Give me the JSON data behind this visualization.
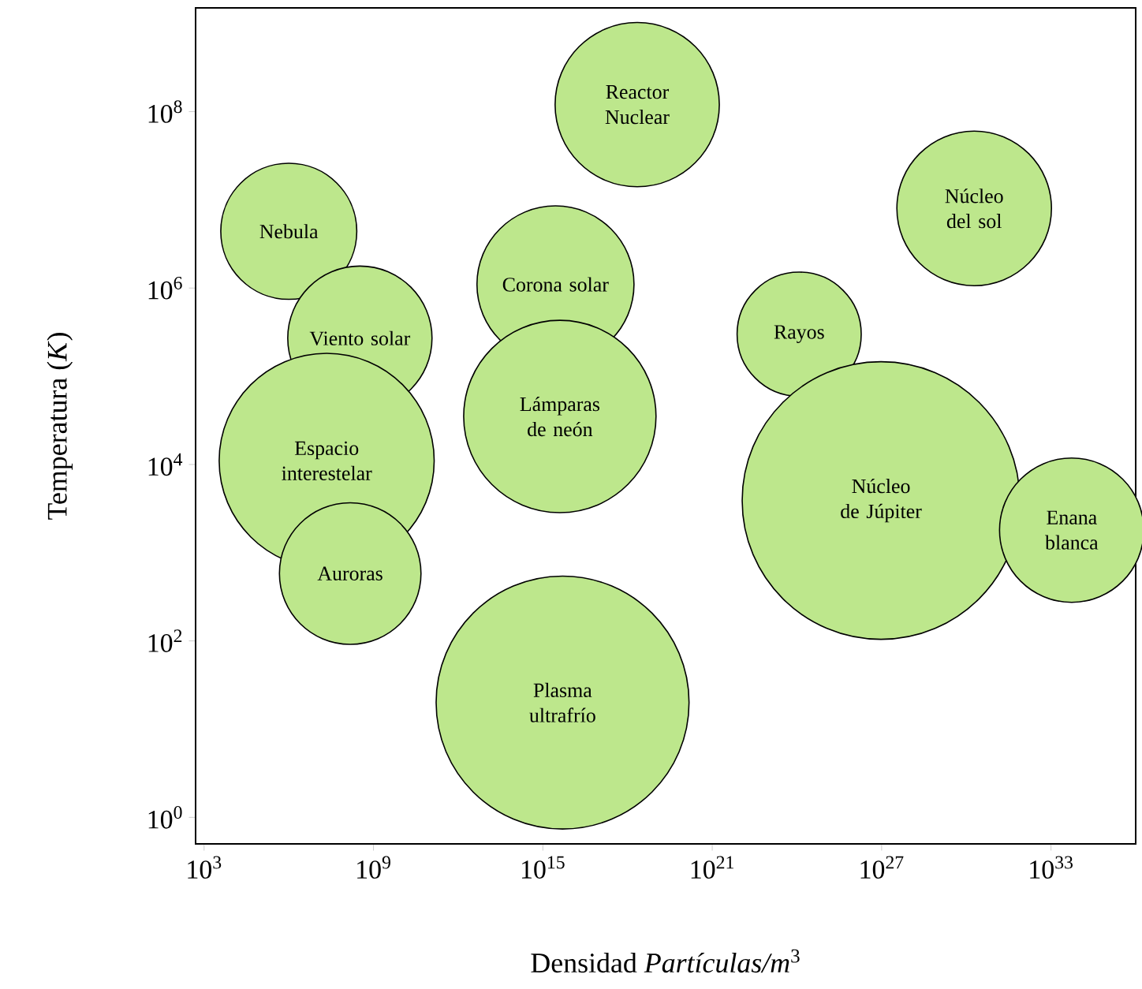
{
  "chart_data": {
    "type": "bubble",
    "log": "xy",
    "color": "#bde78c",
    "x": [
      1000000.0,
      330000000.0,
      22000000.0,
      150000000.0,
      2800000000000000.0,
      4000000000000000.0,
      5000000000000000.0,
      2.2e+18,
      1.2e+24,
      9.5e+26,
      1.9e+30,
      5.4e+33
    ],
    "values": [
      4400000.0,
      270000.0,
      11000.0,
      580,
      1100000.0,
      35000.0,
      20,
      120000000.0,
      300000.0,
      3900,
      8000000.0,
      1800
    ],
    "sizes": [
      0.24,
      0.27,
      0.6,
      0.26,
      0.32,
      0.48,
      0.83,
      0.35,
      0.2,
      1,
      0.31,
      0.27
    ],
    "annotations": [
      {
        "text": "Nebula",
        "x": 1000000.0,
        "y": 4400000.0
      },
      {
        "text": "Viento solar",
        "x": 330000000.0,
        "y": 270000.0
      },
      {
        "text": "Espacio interestelar",
        "x": 22000000.0,
        "y": 11000.0
      },
      {
        "text": "Auroras",
        "x": 150000000.0,
        "y": 580
      },
      {
        "text": "Corona solar",
        "x": 2800000000000000.0,
        "y": 1100000.0
      },
      {
        "text": "Lámparas de neón",
        "x": 4000000000000000.0,
        "y": 35000.0
      },
      {
        "text": "Plasma ultrafrío",
        "x": 5000000000000000.0,
        "y": 20
      },
      {
        "text": "Reactor Nuclear",
        "x": 2.2e+18,
        "y": 120000000.0
      },
      {
        "text": "Rayos",
        "x": 1.2e+24,
        "y": 300000.0
      },
      {
        "text": "Núcleo de Júpiter",
        "x": 9.5e+26,
        "y": 3900
      },
      {
        "text": "Núcleo del sol",
        "x": 1.9e+30,
        "y": 8000000.0
      },
      {
        "text": "Enana blanca",
        "x": 5.4e+33,
        "y": 1800
      }
    ],
    "xlabel": "Densidad *Partículas/m*$^{3}$",
    "ylabel": "Temperatura (*K*)",
    "xlim": [
      500,
      1e+36
    ],
    "ylim": [
      0.5,
      1500000000.0
    ],
    "xticks": [
      {
        "value": 1000.0,
        "label": "10$^{3}$"
      },
      {
        "value": 1000000000.0,
        "label": "10$^{9}$"
      },
      {
        "value": 1000000000000000.0,
        "label": "10$^{15}$"
      },
      {
        "value": 1e+21,
        "label": "10$^{21}$"
      },
      {
        "value": 1e+27,
        "label": "10$^{27}$"
      },
      {
        "value": 1e+33,
        "label": "10$^{33}$"
      }
    ],
    "yticks": [
      {
        "value": 1,
        "label": "10$^{0}$"
      },
      {
        "value": 100,
        "label": "10$^{2}$"
      },
      {
        "value": 10000.0,
        "label": "10$^{4}$"
      },
      {
        "value": 1000000.0,
        "label": "10$^{6}$"
      },
      {
        "value": 100000000.0,
        "label": "10$^{8}$"
      }
    ]
  }
}
